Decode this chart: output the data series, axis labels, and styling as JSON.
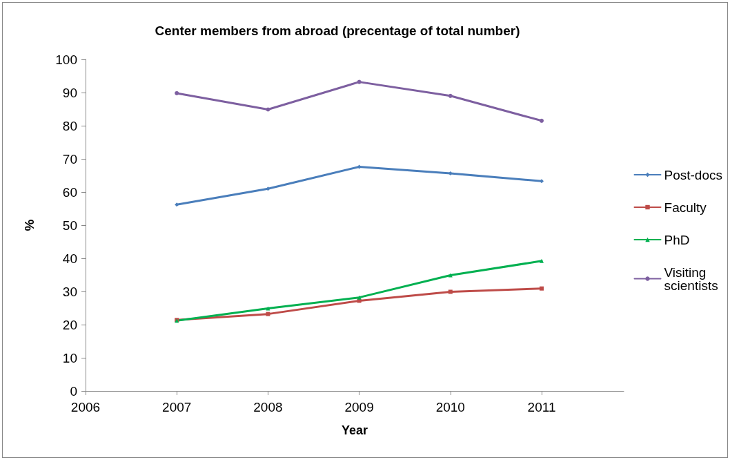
{
  "chart_data": {
    "type": "line",
    "title": "Center members from abroad (precentage of total number)",
    "xlabel": "Year",
    "ylabel": "%",
    "x": [
      2007,
      2008,
      2009,
      2010,
      2011
    ],
    "series": [
      {
        "name": "Post-docs",
        "color": "#4a7ebb",
        "marker": "diamond",
        "values": [
          56.2,
          61.0,
          67.6,
          65.6,
          63.3
        ]
      },
      {
        "name": "Faculty",
        "color": "#be4b48",
        "marker": "square",
        "values": [
          21.4,
          23.2,
          27.2,
          29.9,
          30.9
        ]
      },
      {
        "name": "PhD",
        "color": "#00b050",
        "marker": "triangle",
        "values": [
          21.2,
          24.9,
          28.2,
          34.9,
          39.2
        ]
      },
      {
        "name": "Visiting scientists",
        "color": "#7d5fa0",
        "marker": "circle",
        "values": [
          89.8,
          84.9,
          93.2,
          89.0,
          81.5
        ]
      }
    ],
    "xlim": [
      2006,
      2011.9
    ],
    "xticks": [
      2006,
      2007,
      2008,
      2009,
      2010,
      2011
    ],
    "ylim": [
      0,
      100
    ],
    "yticks": [
      0,
      10,
      20,
      30,
      40,
      50,
      60,
      70,
      80,
      90,
      100
    ],
    "grid": false,
    "legend": "right",
    "line_style": "solid"
  }
}
